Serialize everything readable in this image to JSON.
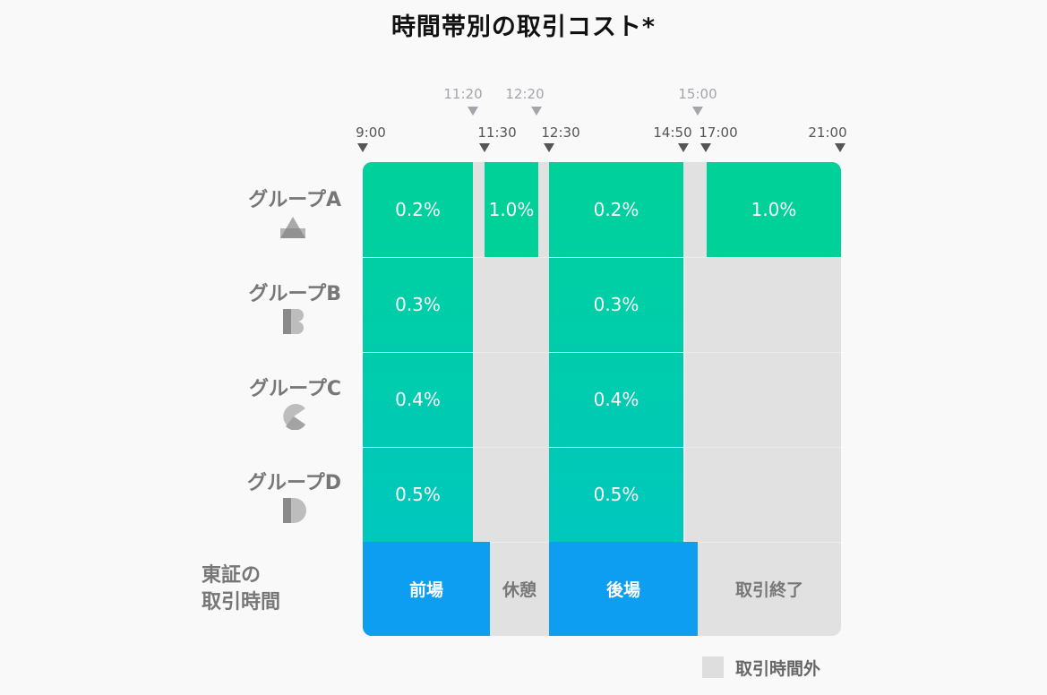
{
  "title": "時間帯別の取引コスト*",
  "time_markers": {
    "main": [
      "9:00",
      "11:30",
      "12:30",
      "14:50",
      "17:00",
      "21:00"
    ],
    "break": [
      "11:20",
      "12:20",
      "15:00"
    ]
  },
  "groups": [
    {
      "label": "グループA",
      "icon": "triangle-icon",
      "costs": [
        "0.2%",
        "1.0%",
        "0.2%",
        "1.0%"
      ]
    },
    {
      "label": "グループB",
      "icon": "letter-b-icon",
      "costs": [
        "0.3%",
        "0.3%"
      ]
    },
    {
      "label": "グループC",
      "icon": "pacman-icon",
      "costs": [
        "0.4%",
        "0.4%"
      ]
    },
    {
      "label": "グループD",
      "icon": "letter-d-icon",
      "costs": [
        "0.5%",
        "0.5%"
      ]
    }
  ],
  "tse": {
    "label_line1": "東証の",
    "label_line2": "取引時間",
    "sessions": [
      "前場",
      "休憩",
      "後場",
      "取引終了"
    ]
  },
  "legend": {
    "label": "取引時間外"
  },
  "colors": {
    "trading": "#00d199",
    "trading_gradient_end": "#00c8be",
    "session_open": "#0d9ef2",
    "off_hours": "#e1e1e1"
  }
}
